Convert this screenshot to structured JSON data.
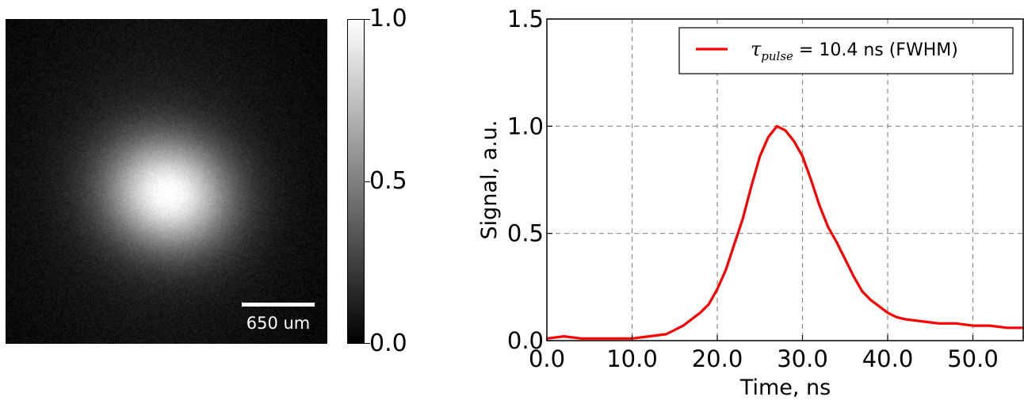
{
  "image_panel": {
    "scale_bar_label": "650 um",
    "colormap": "gray",
    "colorbar": {
      "ticks": [
        "1.0",
        "0.5",
        "0.0"
      ],
      "values": [
        1.0,
        0.5,
        0.0
      ],
      "range": [
        0,
        1
      ]
    }
  },
  "chart_data": {
    "type": "line",
    "xlabel": "Time, ns",
    "ylabel": "Signal, a.u.",
    "xlim": [
      0,
      56
    ],
    "ylim": [
      0,
      1.5
    ],
    "xticks": [
      0,
      10,
      20,
      30,
      40,
      50
    ],
    "xtick_labels": [
      "0.0",
      "10.0",
      "20.0",
      "30.0",
      "40.0",
      "50.0"
    ],
    "yticks": [
      0,
      0.5,
      1.0,
      1.5
    ],
    "ytick_labels": [
      "0.0",
      "0.5",
      "1.0",
      "1.5"
    ],
    "grid": true,
    "legend_position": "top-right",
    "series": [
      {
        "name": "τpulse = 10.4 ns (FWHM)",
        "name_symbol": "τ",
        "name_subscript": "pulse",
        "name_suffix": " = 10.4 ns (FWHM)",
        "color": "#ff0000",
        "x": [
          0,
          2,
          4,
          6,
          8,
          10,
          12,
          14,
          15,
          16,
          17,
          18,
          19,
          20,
          21,
          22,
          23,
          24,
          25,
          26,
          27,
          28,
          29,
          30,
          31,
          32,
          33,
          34,
          35,
          36,
          37,
          38,
          39,
          40,
          41,
          42,
          44,
          46,
          48,
          50,
          52,
          54,
          56
        ],
        "y": [
          0.01,
          0.02,
          0.01,
          0.01,
          0.01,
          0.01,
          0.02,
          0.03,
          0.05,
          0.07,
          0.1,
          0.13,
          0.17,
          0.24,
          0.33,
          0.45,
          0.57,
          0.72,
          0.86,
          0.95,
          1.0,
          0.98,
          0.93,
          0.86,
          0.75,
          0.63,
          0.53,
          0.46,
          0.38,
          0.3,
          0.23,
          0.19,
          0.16,
          0.13,
          0.11,
          0.1,
          0.09,
          0.08,
          0.08,
          0.07,
          0.07,
          0.06,
          0.06
        ]
      }
    ]
  }
}
